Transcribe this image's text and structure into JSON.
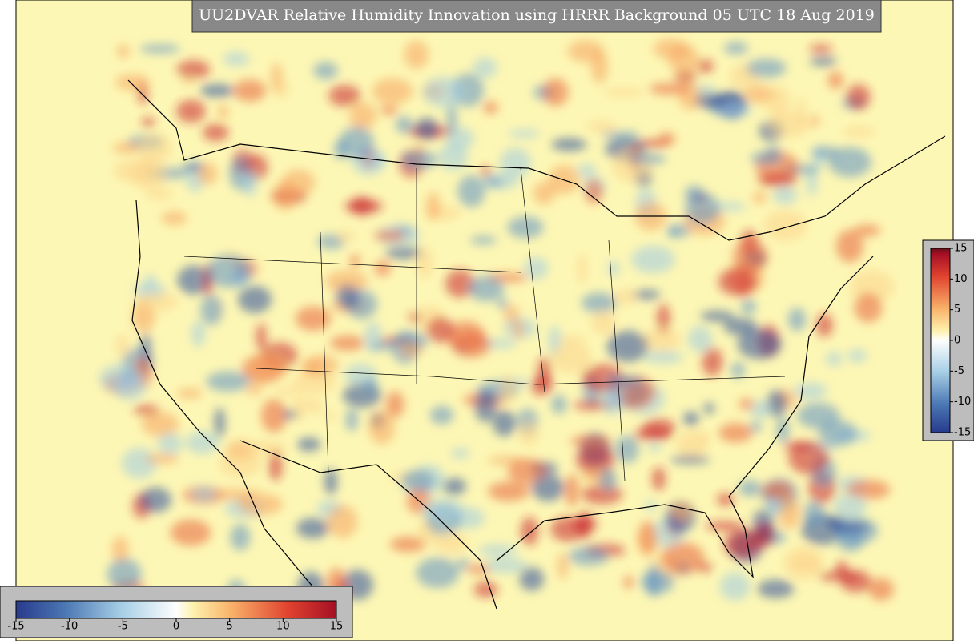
{
  "title": "UU2DVAR Relative Humidity Innovation using HRRR Background 05 UTC 18 Aug 2019",
  "colorbar_bottom": {
    "range": [
      -15,
      15
    ],
    "ticks": [
      -15,
      -10,
      -5,
      0,
      5,
      10,
      15
    ]
  },
  "colorbar_right": {
    "range": [
      -15,
      15
    ],
    "ticks": [
      15,
      10,
      5,
      0,
      -5,
      -10,
      -15
    ]
  }
}
